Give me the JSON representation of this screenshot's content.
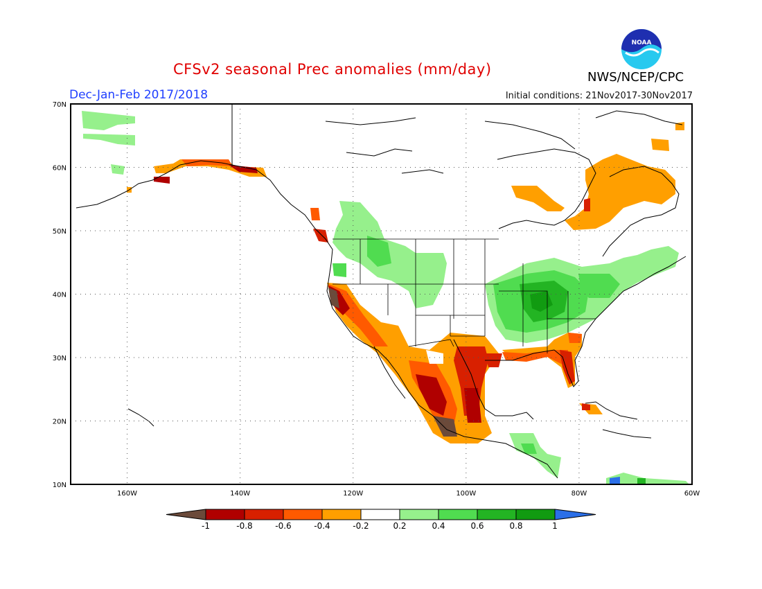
{
  "header": {
    "title": "CFSv2 seasonal Prec anomalies (mm/day)",
    "period": "Dec-Jan-Feb 2017/2018",
    "initial_conditions": "Initial conditions: 21Nov2017-30Nov2017",
    "agency": "NWS/NCEP/CPC",
    "logo_text": "NOAA"
  },
  "map": {
    "lat_labels": [
      "70N",
      "60N",
      "50N",
      "40N",
      "30N",
      "20N",
      "10N"
    ],
    "lon_labels": [
      "160W",
      "140W",
      "120W",
      "100W",
      "80W",
      "60W"
    ],
    "lat_range": [
      10,
      70
    ],
    "lon_range": [
      -170,
      -60
    ]
  },
  "legend": {
    "labels": [
      "-1",
      "-0.8",
      "-0.6",
      "-0.4",
      "-0.2",
      "0.2",
      "0.4",
      "0.6",
      "0.8",
      "1"
    ],
    "colors": {
      "below_min": "#6b4a3a",
      "neg_1_08": "#b00000",
      "neg_08_06": "#d82000",
      "neg_06_04": "#ff5a00",
      "neg_04_02": "#ff9f00",
      "neutral": "#ffffff",
      "pos_02_04": "#96f08c",
      "pos_04_06": "#50dc50",
      "pos_06_08": "#23b423",
      "pos_08_1": "#119b11",
      "above_max": "#2b6fe8"
    }
  }
}
